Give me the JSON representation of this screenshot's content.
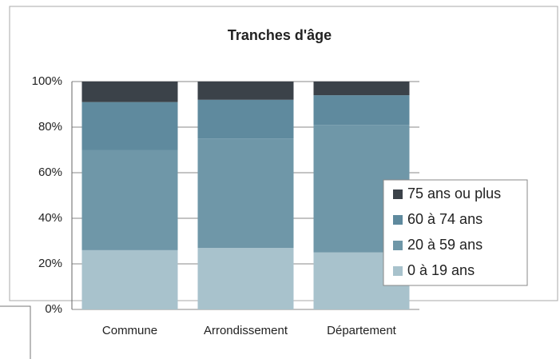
{
  "chart_data": {
    "type": "stacked_bar",
    "title": "Tranches d'âge",
    "categories": [
      "Commune",
      "Arrondissement",
      "Département"
    ],
    "series": [
      {
        "name": "0 à 19 ans",
        "color": "#a8c2cc",
        "values": [
          26,
          27,
          25
        ]
      },
      {
        "name": "20 à 59 ans",
        "color": "#6f97a8",
        "values": [
          44,
          48,
          56
        ]
      },
      {
        "name": "60 à 74 ans",
        "color": "#5f8a9e",
        "values": [
          21,
          17,
          13
        ]
      },
      {
        "name": "75 ans ou plus",
        "color": "#3b4249",
        "values": [
          9,
          8,
          6
        ]
      }
    ],
    "ylim": [
      0,
      100
    ],
    "yticks": [
      {
        "value": 0,
        "label": "0%"
      },
      {
        "value": 20,
        "label": "20%"
      },
      {
        "value": 40,
        "label": "40%"
      },
      {
        "value": 60,
        "label": "60%"
      },
      {
        "value": 80,
        "label": "80%"
      },
      {
        "value": 100,
        "label": "100%"
      }
    ],
    "grid": true,
    "legend": "right"
  }
}
